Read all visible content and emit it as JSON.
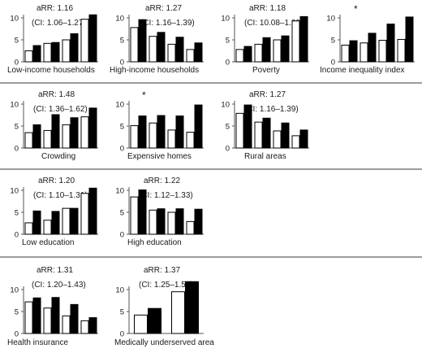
{
  "chart_data": [
    {
      "type": "bar",
      "title": "Low-income households",
      "rr": "aRR: 1.16",
      "ci": "(CI: 1.06–1.27)",
      "star": "",
      "ylim": [
        0,
        10
      ],
      "yticks": [
        0,
        5,
        10
      ],
      "series": [
        {
          "values": [
            2.5,
            4.2,
            5.0,
            9.7
          ],
          "color": "#ffffff"
        },
        {
          "values": [
            3.7,
            4.4,
            6.4,
            10.7
          ],
          "color": "#000000"
        }
      ]
    },
    {
      "type": "bar",
      "title": "High-income households",
      "rr": "aRR: 1.27",
      "ci": "(CI: 1.16–1.39)",
      "star": "",
      "ylim": [
        0,
        10
      ],
      "yticks": [
        0,
        5,
        10
      ],
      "series": [
        {
          "values": [
            7.8,
            5.8,
            4.0,
            2.8
          ],
          "color": "#ffffff"
        },
        {
          "values": [
            9.6,
            6.7,
            5.6,
            4.3
          ],
          "color": "#000000"
        }
      ]
    },
    {
      "type": "bar",
      "title": "Poverty",
      "rr": "aRR: 1.18",
      "ci": "(CI: 10.08–1.29)",
      "star": "",
      "ylim": [
        0,
        10
      ],
      "yticks": [
        0,
        5,
        10
      ],
      "series": [
        {
          "values": [
            2.8,
            4.0,
            5.0,
            9.3
          ],
          "color": "#ffffff"
        },
        {
          "values": [
            3.5,
            5.5,
            5.9,
            10.3
          ],
          "color": "#000000"
        }
      ]
    },
    {
      "type": "bar",
      "title": "Income inequality index",
      "rr": "",
      "ci": "",
      "star": "*",
      "ylim": [
        0,
        10
      ],
      "yticks": [
        0,
        5,
        10
      ],
      "series": [
        {
          "values": [
            3.8,
            4.3,
            4.9,
            5.1
          ],
          "color": "#ffffff"
        },
        {
          "values": [
            4.8,
            6.5,
            8.6,
            10.2
          ],
          "color": "#000000"
        }
      ]
    },
    {
      "type": "bar",
      "title": "Crowding",
      "rr": "aRR: 1.48",
      "ci": "(CI: 1.36–1.62)",
      "star": "",
      "ylim": [
        0,
        10
      ],
      "yticks": [
        0,
        5,
        10
      ],
      "series": [
        {
          "values": [
            3.5,
            4.0,
            5.3,
            7.1
          ],
          "color": "#ffffff"
        },
        {
          "values": [
            5.3,
            7.6,
            6.9,
            9.1
          ],
          "color": "#000000"
        }
      ]
    },
    {
      "type": "bar",
      "title": "Expensive homes",
      "rr": "",
      "ci": "",
      "star": "*",
      "ylim": [
        0,
        10
      ],
      "yticks": [
        0,
        5,
        10
      ],
      "series": [
        {
          "values": [
            5.1,
            5.7,
            4.1,
            3.6
          ],
          "color": "#ffffff"
        },
        {
          "values": [
            7.3,
            7.4,
            7.3,
            9.8
          ],
          "color": "#000000"
        }
      ]
    },
    {
      "type": "bar",
      "title": "Rural areas",
      "rr": "aRR: 1.27",
      "ci": "(CI: 1.16–1.39)",
      "star": "",
      "ylim": [
        0,
        10
      ],
      "yticks": [
        0,
        5,
        10
      ],
      "series": [
        {
          "values": [
            7.9,
            5.9,
            3.9,
            2.8
          ],
          "color": "#ffffff"
        },
        {
          "values": [
            9.8,
            6.8,
            5.7,
            4.1
          ],
          "color": "#000000"
        }
      ]
    },
    {
      "type": "bar",
      "title": "Low education",
      "rr": "aRR: 1.20",
      "ci": "(CI: 1.10–1.31)",
      "star": "",
      "ylim": [
        0,
        10
      ],
      "yticks": [
        0,
        5,
        10
      ],
      "series": [
        {
          "values": [
            2.6,
            3.2,
            5.9,
            9.3
          ],
          "color": "#ffffff"
        },
        {
          "values": [
            5.3,
            5.2,
            5.9,
            10.5
          ],
          "color": "#000000"
        }
      ]
    },
    {
      "type": "bar",
      "title": "High education",
      "rr": "aRR: 1.22",
      "ci": "(CI: 1.12–1.33)",
      "star": "",
      "ylim": [
        0,
        10
      ],
      "yticks": [
        0,
        5,
        10
      ],
      "series": [
        {
          "values": [
            8.5,
            5.5,
            5.0,
            2.9
          ],
          "color": "#ffffff"
        },
        {
          "values": [
            10.1,
            5.8,
            5.8,
            5.7
          ],
          "color": "#000000"
        }
      ]
    },
    {
      "type": "bar",
      "title": "Health insurance",
      "rr": "aRR: 1.31",
      "ci": "(CI: 1.20–1.43)",
      "star": "",
      "ylim": [
        0,
        10
      ],
      "yticks": [
        0,
        5,
        10
      ],
      "series": [
        {
          "values": [
            7.2,
            5.8,
            4.0,
            2.9
          ],
          "color": "#ffffff"
        },
        {
          "values": [
            8.1,
            8.2,
            6.6,
            3.6
          ],
          "color": "#000000"
        }
      ]
    },
    {
      "type": "bar",
      "title": "Medically underserved area",
      "rr": "aRR: 1.37",
      "ci": "(CI: 1.25–1.50)",
      "star": "",
      "ylim": [
        0,
        10
      ],
      "yticks": [
        0,
        5,
        10
      ],
      "series": [
        {
          "values": [
            4.2,
            9.5
          ],
          "color": "#ffffff"
        },
        {
          "values": [
            5.7,
            11.8
          ],
          "color": "#000000"
        }
      ]
    }
  ]
}
